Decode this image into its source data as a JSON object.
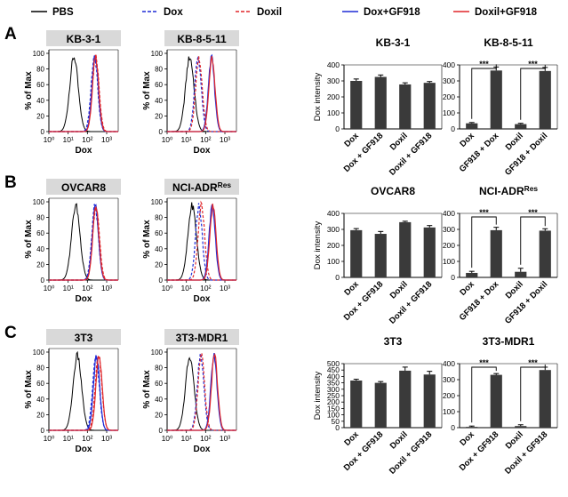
{
  "legend": [
    {
      "label": "PBS",
      "color": "#000000",
      "dash": false
    },
    {
      "label": "Dox",
      "color": "#1f2bd6",
      "dash": true
    },
    {
      "label": "Doxil",
      "color": "#e0262a",
      "dash": true
    },
    {
      "label": "Dox+GF918",
      "color": "#1f2bd6",
      "dash": false
    },
    {
      "label": "Doxil+GF918",
      "color": "#e0262a",
      "dash": false
    }
  ],
  "colors": {
    "pbs": "#000000",
    "dox": "#1f2bd6",
    "doxil": "#e0262a",
    "bar": "#3a3a3a",
    "header_bg": "#d9d9d9"
  },
  "flow_axis": {
    "ylabel": "% of Max",
    "xlabel": "Dox",
    "yticks": [
      "0",
      "20",
      "40",
      "60",
      "80",
      "100"
    ],
    "xticks": [
      "10⁰",
      "10¹",
      "10²",
      "10³"
    ]
  },
  "sig_label": "***",
  "panels": [
    {
      "letter": "A",
      "flow": [
        {
          "title": "KB-3-1",
          "title_sup": "",
          "pbs_peak": 20,
          "dox_peak": 230,
          "doxil_peak": 270,
          "doxgf_peak": 250,
          "doxilgf_peak": 265
        },
        {
          "title": "KB-8-5-11",
          "title_sup": "",
          "pbs_peak": 15,
          "dox_peak": 40,
          "doxil_peak": 45,
          "doxgf_peak": 200,
          "doxilgf_peak": 215
        }
      ],
      "bars": [
        {
          "title": "KB-3-1",
          "title_sup": "",
          "ylabel": "Dox intensity",
          "yticks": [
            "0",
            "100",
            "200",
            "300",
            "400"
          ],
          "ylim": [
            0,
            400
          ],
          "categories": [
            "Dox",
            "Dox + GF918",
            "Doxil",
            "Doxil + GF918"
          ],
          "values": [
            300,
            325,
            278,
            288
          ],
          "errors": [
            12,
            12,
            10,
            8
          ],
          "sig": []
        },
        {
          "title": "KB-8-5-11",
          "title_sup": "",
          "ylabel": "",
          "yticks": [
            "0",
            "100",
            "200",
            "300",
            "400"
          ],
          "ylim": [
            0,
            400
          ],
          "categories": [
            "Dox",
            "GF918 + Dox",
            "Doxil",
            "GF918 + Doxil"
          ],
          "values": [
            35,
            365,
            30,
            362
          ],
          "errors": [
            5,
            22,
            5,
            22
          ],
          "sig": [
            [
              0,
              1
            ],
            [
              2,
              3
            ]
          ]
        }
      ]
    },
    {
      "letter": "B",
      "flow": [
        {
          "title": "OVCAR8",
          "title_sup": "",
          "pbs_peak": 25,
          "dox_peak": 250,
          "doxil_peak": 280,
          "doxgf_peak": 260,
          "doxilgf_peak": 275
        },
        {
          "title": "NCI-ADR",
          "title_sup": "Res",
          "pbs_peak": 20,
          "dox_peak": 45,
          "doxil_peak": 60,
          "doxgf_peak": 220,
          "doxilgf_peak": 240
        }
      ],
      "bars": [
        {
          "title": "OVCAR8",
          "title_sup": "",
          "ylabel": "Dox intensity",
          "yticks": [
            "0",
            "100",
            "200",
            "300",
            "400"
          ],
          "ylim": [
            0,
            400
          ],
          "categories": [
            "Dox",
            "Dox + GF918",
            "Doxil",
            "Doxil + GF918"
          ],
          "values": [
            295,
            272,
            345,
            312
          ],
          "errors": [
            10,
            15,
            6,
            12
          ],
          "sig": []
        },
        {
          "title": "NCI-ADR",
          "title_sup": "Res",
          "ylabel": "",
          "yticks": [
            "0",
            "100",
            "200",
            "300",
            "400"
          ],
          "ylim": [
            0,
            400
          ],
          "categories": [
            "Dox",
            "GF918 + Dox",
            "Doxil",
            "GF918 + Doxil"
          ],
          "values": [
            28,
            295,
            35,
            292
          ],
          "errors": [
            10,
            18,
            22,
            12
          ],
          "sig": [
            [
              0,
              1
            ],
            [
              2,
              3
            ]
          ]
        }
      ]
    },
    {
      "letter": "C",
      "flow": [
        {
          "title": "3T3",
          "title_sup": "",
          "pbs_peak": 30,
          "dox_peak": 280,
          "doxil_peak": 380,
          "doxgf_peak": 300,
          "doxilgf_peak": 400
        },
        {
          "title": "3T3-MDR1",
          "title_sup": "",
          "pbs_peak": 15,
          "dox_peak": 55,
          "doxil_peak": 60,
          "doxgf_peak": 270,
          "doxilgf_peak": 290
        }
      ],
      "bars": [
        {
          "title": "3T3",
          "title_sup": "",
          "ylabel": "Dox intensity",
          "yticks": [
            "0",
            "50",
            "100",
            "150",
            "200",
            "250",
            "300",
            "350",
            "400",
            "450",
            "500"
          ],
          "ylim": [
            0,
            500
          ],
          "categories": [
            "Dox",
            "Dox + GF918",
            "Doxil",
            "Doxil + GF918"
          ],
          "values": [
            368,
            350,
            445,
            415
          ],
          "errors": [
            10,
            10,
            28,
            25
          ],
          "sig": []
        },
        {
          "title": "3T3-MDR1",
          "title_sup": "",
          "ylabel": "",
          "yticks": [
            "0",
            "100",
            "200",
            "300",
            "400"
          ],
          "ylim": [
            0,
            400
          ],
          "categories": [
            "Dox",
            "Dox + GF918",
            "Doxil",
            "Doxil + GF918"
          ],
          "values": [
            5,
            330,
            10,
            360
          ],
          "errors": [
            5,
            8,
            8,
            18
          ],
          "sig": [
            [
              0,
              1
            ],
            [
              2,
              3
            ]
          ]
        }
      ]
    }
  ]
}
